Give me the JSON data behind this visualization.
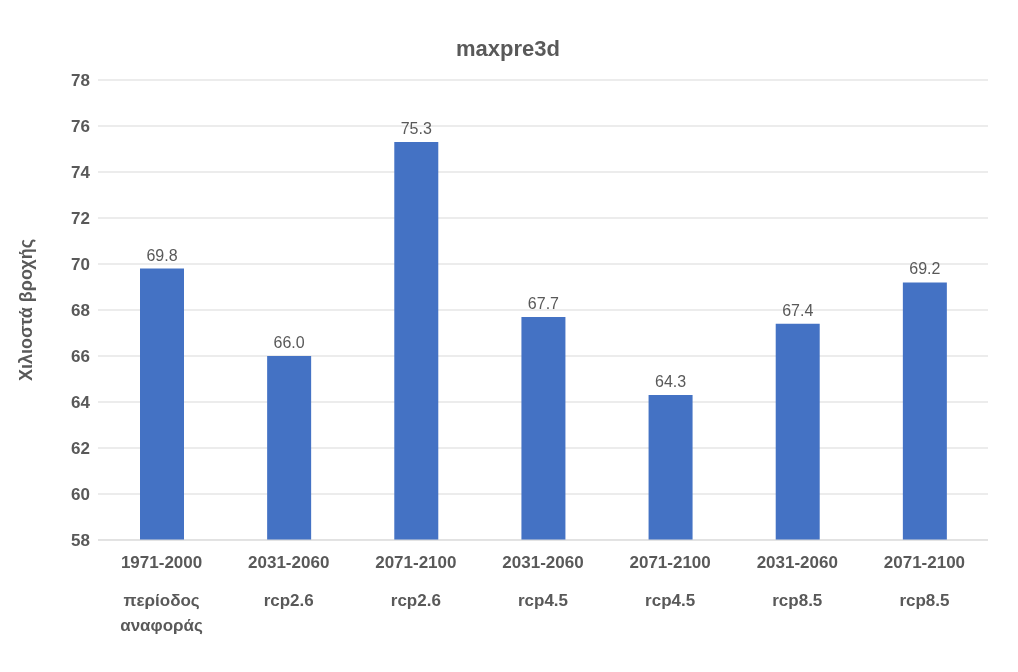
{
  "chart_data": {
    "type": "bar",
    "title": "maxpre3d",
    "ylabel": "Χιλιοστά βροχής",
    "categories": [
      "1971-2000\nπερίοδος\nαναφοράς",
      "2031-2060\nrcp2.6",
      "2071-2100\nrcp2.6",
      "2031-2060\nrcp4.5",
      "2071-2100\nrcp4.5",
      "2031-2060\nrcp8.5",
      "2071-2100\nrcp8.5"
    ],
    "values": [
      69.8,
      66.0,
      75.3,
      67.7,
      64.3,
      67.4,
      69.2
    ],
    "value_labels": [
      "69.8",
      "66.0",
      "75.3",
      "67.7",
      "64.3",
      "67.4",
      "69.2"
    ],
    "color": "#4472c4",
    "ylim": [
      58,
      78
    ],
    "yticks": [
      58,
      60,
      62,
      64,
      66,
      68,
      70,
      72,
      74,
      76,
      78
    ],
    "grid": "y",
    "legend": false
  }
}
